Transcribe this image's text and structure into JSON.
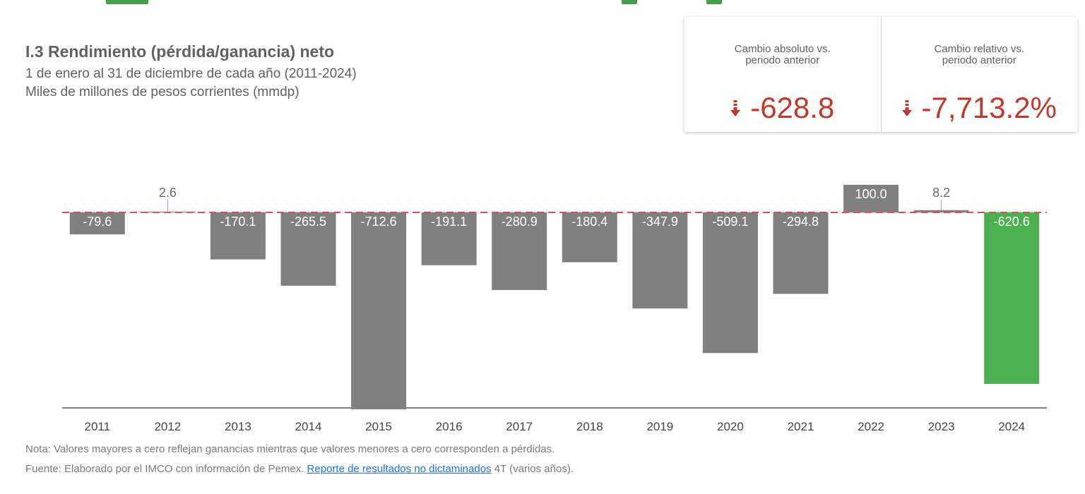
{
  "header": {
    "title": "I.3 Rendimiento (pérdida/ganancia) neto",
    "subtitle_period": "1 de enero al 31 de diciembre de cada año (2011-2024)",
    "subtitle_units": "Miles de millones de pesos corrientes (mmdp)"
  },
  "kpis": [
    {
      "label": "Cambio absoluto vs. periodo anterior",
      "value": "-628.8",
      "icon": "arrow-down-icon"
    },
    {
      "label": "Cambio relativo vs. periodo anterior",
      "value": "-7,713.2%",
      "icon": "arrow-down-icon"
    }
  ],
  "colors": {
    "bar": "#808080",
    "highlight_bar": "#4caf50",
    "zero_line": "#e05050",
    "kpi_value": "#c0392b",
    "accent_green": "#43a047",
    "axis": "#555555"
  },
  "chart_data": {
    "type": "bar",
    "title": "I.3 Rendimiento (pérdida/ganancia) neto",
    "ylabel": "Miles de millones de pesos corrientes (mmdp)",
    "categories": [
      "2011",
      "2012",
      "2013",
      "2014",
      "2015",
      "2016",
      "2017",
      "2018",
      "2019",
      "2020",
      "2021",
      "2022",
      "2023",
      "2024"
    ],
    "values": [
      -79.6,
      2.6,
      -170.1,
      -265.5,
      -712.6,
      -191.1,
      -280.9,
      -180.4,
      -347.9,
      -509.1,
      -294.8,
      100.0,
      8.2,
      -620.6
    ],
    "labels": [
      "-79.6",
      "2.6",
      "-170.1",
      "-265.5",
      "-712.6",
      "-191.1",
      "-280.9",
      "-180.4",
      "-347.9",
      "-509.1",
      "-294.8",
      "100.0",
      "8.2",
      "-620.6"
    ],
    "highlight_index": 13,
    "ylim": [
      -712.6,
      100
    ],
    "zero_line": "dashed",
    "grid": false,
    "legend": "none"
  },
  "notes": {
    "nota": "Nota: Valores mayores a cero reflejan ganancias mientras que valores menores a cero corresponden a pérdidas.",
    "fuente_prefix": "Fuente: Elaborado por el IMCO con información de Pemex. ",
    "fuente_link": "Reporte de resultados no dictaminados",
    "fuente_suffix": " 4T (varios años)."
  }
}
